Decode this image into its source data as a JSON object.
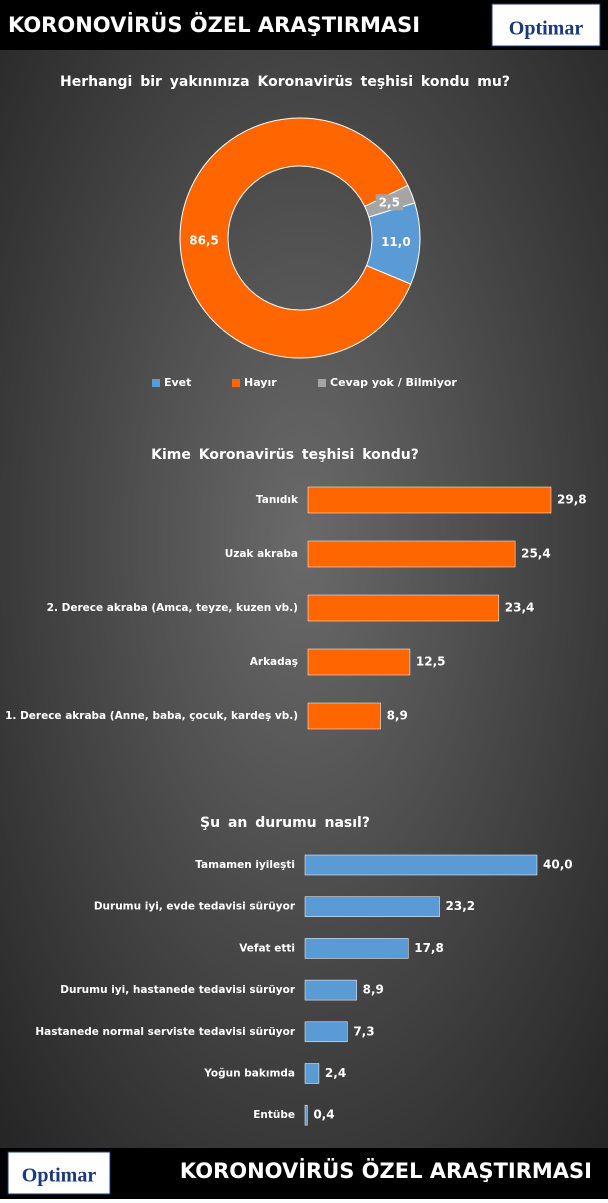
{
  "header": {
    "title": "KORONOVİRÜS ÖZEL ARAŞTIRMASI",
    "logo": "Optimar"
  },
  "footer": {
    "title": "KORONOVİRÜS ÖZEL ARAŞTIRMASI",
    "logo": "Optimar"
  },
  "chart_data": [
    {
      "type": "pie",
      "title": "Herhangi bir yakınınıza Koronavirüs teşhisi kondu mu?",
      "categories": [
        "Evet",
        "Hayır",
        "Cevap yok / Bilmiyor"
      ],
      "values": [
        11.0,
        86.5,
        2.5
      ],
      "value_labels": [
        "11,0",
        "86,5",
        "2,5"
      ],
      "colors": [
        "#5b9bd5",
        "#ff6600",
        "#a5a5a5"
      ]
    },
    {
      "type": "bar",
      "title": "Kime Koronavirüs teşhisi kondu?",
      "categories": [
        "Tanıdık",
        "Uzak akraba",
        "2. Derece akraba (Amca, teyze, kuzen vb.)",
        "Arkadaş",
        "1. Derece akraba (Anne, baba, çocuk, kardeş vb.)"
      ],
      "values": [
        29.8,
        25.4,
        23.4,
        12.5,
        8.9
      ],
      "value_labels": [
        "29,8",
        "25,4",
        "23,4",
        "12,5",
        "8,9"
      ],
      "color": "#ff6600"
    },
    {
      "type": "bar",
      "title": "Şu an durumu nasıl?",
      "categories": [
        "Tamamen iyileşti",
        "Durumu iyi, evde tedavisi sürüyor",
        "Vefat etti",
        "Durumu iyi, hastanede tedavisi sürüyor",
        "Hastanede normal serviste tedavisi sürüyor",
        "Yoğun bakımda",
        "Entübe"
      ],
      "values": [
        40.0,
        23.2,
        17.8,
        8.9,
        7.3,
        2.4,
        0.4
      ],
      "value_labels": [
        "40,0",
        "23,2",
        "17,8",
        "8,9",
        "7,3",
        "2,4",
        "0,4"
      ],
      "color": "#5b9bd5"
    }
  ]
}
